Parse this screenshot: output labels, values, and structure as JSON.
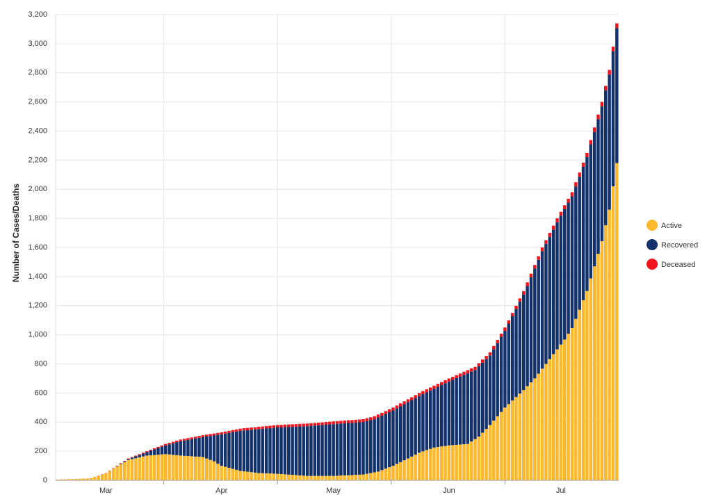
{
  "chart_data": {
    "type": "stacked-bar",
    "y_label": "Number of Cases/Deaths",
    "categories": [
      null,
      null,
      null,
      null,
      null,
      null,
      null,
      null,
      null,
      null,
      null,
      null,
      null,
      "Mar",
      null,
      null,
      null,
      null,
      null,
      null,
      null,
      null,
      null,
      null,
      null,
      null,
      null,
      null,
      null,
      null,
      null,
      null,
      null,
      null,
      null,
      null,
      null,
      null,
      null,
      null,
      null,
      null,
      null,
      null,
      "Apr",
      null,
      null,
      null,
      null,
      null,
      null,
      null,
      null,
      null,
      null,
      null,
      null,
      null,
      null,
      null,
      null,
      null,
      null,
      null,
      null,
      null,
      null,
      null,
      null,
      null,
      null,
      null,
      null,
      null,
      "May",
      null,
      null,
      null,
      null,
      null,
      null,
      null,
      null,
      null,
      null,
      null,
      null,
      null,
      null,
      null,
      null,
      null,
      null,
      null,
      null,
      null,
      null,
      null,
      null,
      null,
      null,
      null,
      null,
      null,
      null,
      "Jun",
      null,
      null,
      null,
      null,
      null,
      null,
      null,
      null,
      null,
      null,
      null,
      null,
      null,
      null,
      null,
      null,
      null,
      null,
      null,
      null,
      null,
      null,
      null,
      null,
      null,
      null,
      null,
      null,
      null,
      "Jul",
      null,
      null,
      null,
      null,
      null,
      null,
      null,
      null,
      null,
      null,
      null,
      null,
      null,
      null,
      null
    ],
    "series": [
      {
        "name": "Active",
        "color": "#fdb92b",
        "values": [
          5,
          6,
          7,
          8,
          9,
          10,
          11,
          12,
          13,
          15,
          23,
          31,
          39,
          48,
          64,
          80,
          95,
          110,
          125,
          140,
          146,
          152,
          158,
          164,
          170,
          172,
          174,
          176,
          178,
          180,
          178,
          175,
          173,
          170,
          168,
          167,
          165,
          163,
          162,
          160,
          150,
          140,
          130,
          115,
          100,
          93,
          86,
          79,
          72,
          65,
          62,
          59,
          56,
          53,
          50,
          49,
          48,
          47,
          46,
          45,
          43,
          41,
          39,
          38,
          36,
          34,
          32,
          30,
          30,
          30,
          30,
          30,
          30,
          30,
          30,
          31,
          33,
          34,
          35,
          36,
          38,
          39,
          40,
          45,
          50,
          55,
          60,
          70,
          80,
          90,
          100,
          113,
          125,
          138,
          150,
          163,
          177,
          190,
          199,
          208,
          216,
          225,
          229,
          233,
          236,
          240,
          242,
          244,
          246,
          248,
          250,
          267,
          283,
          300,
          327,
          353,
          380,
          410,
          440,
          470,
          500,
          524,
          548,
          572,
          596,
          620,
          647,
          673,
          700,
          733,
          767,
          800,
          833,
          867,
          900,
          933,
          967,
          1008,
          1046,
          1109,
          1172,
          1237,
          1301,
          1387,
          1470,
          1557,
          1643,
          1753,
          1860,
          2020,
          2180
        ]
      },
      {
        "name": "Recovered",
        "color": "#13316b",
        "values": [
          0,
          0,
          0,
          0,
          0,
          0,
          0,
          0,
          0,
          0,
          0,
          0,
          0,
          0,
          1,
          0,
          2,
          4,
          5,
          6,
          10,
          13,
          17,
          20,
          24,
          31,
          39,
          46,
          53,
          60,
          69,
          79,
          89,
          99,
          105,
          111,
          118,
          125,
          130,
          137,
          151,
          165,
          178,
          197,
          216,
          228,
          239,
          251,
          263,
          275,
          281,
          285,
          291,
          296,
          302,
          305,
          308,
          311,
          315,
          318,
          320,
          324,
          327,
          329,
          332,
          336,
          339,
          342,
          344,
          346,
          348,
          350,
          352,
          354,
          356,
          357,
          357,
          358,
          359,
          359,
          359,
          360,
          361,
          363,
          363,
          365,
          372,
          374,
          376,
          378,
          380,
          381,
          384,
          385,
          387,
          388,
          388,
          389,
          393,
          396,
          401,
          404,
          413,
          421,
          431,
          439,
          448,
          458,
          466,
          476,
          485,
          480,
          475,
          483,
          481,
          480,
          478,
          491,
          503,
          516,
          527,
          553,
          579,
          605,
          631,
          657,
          688,
          722,
          755,
          782,
          808,
          825,
          840,
          856,
          873,
          885,
          896,
          900,
          905,
          910,
          914,
          917,
          920,
          922,
          924,
          925,
          926,
          926,
          927,
          927,
          927
        ]
      },
      {
        "name": "Deceased",
        "color": "#f0141c",
        "values": [
          0,
          0,
          0,
          0,
          0,
          0,
          0,
          0,
          0,
          0,
          1,
          1,
          2,
          2,
          2,
          3,
          3,
          3,
          3,
          4,
          4,
          5,
          5,
          6,
          6,
          7,
          7,
          8,
          9,
          10,
          11,
          11,
          11,
          11,
          12,
          12,
          12,
          12,
          13,
          13,
          13,
          13,
          14,
          14,
          14,
          14,
          15,
          15,
          15,
          15,
          15,
          16,
          16,
          16,
          16,
          16,
          17,
          17,
          17,
          17,
          18,
          18,
          18,
          18,
          18,
          18,
          18,
          18,
          18,
          18,
          18,
          18,
          19,
          19,
          19,
          19,
          19,
          19,
          19,
          19,
          19,
          19,
          19,
          19,
          20,
          20,
          20,
          20,
          20,
          20,
          20,
          20,
          20,
          20,
          20,
          20,
          21,
          21,
          21,
          21,
          21,
          21,
          21,
          21,
          21,
          21,
          21,
          21,
          22,
          22,
          22,
          22,
          22,
          22,
          22,
          22,
          22,
          22,
          22,
          22,
          23,
          23,
          23,
          23,
          23,
          23,
          25,
          25,
          25,
          25,
          25,
          25,
          27,
          27,
          27,
          27,
          27,
          27,
          29,
          29,
          29,
          29,
          29,
          29,
          31,
          31,
          31,
          31,
          33,
          33,
          33
        ]
      }
    ],
    "ylim": [
      0,
      3200
    ],
    "yticks": [
      0,
      200,
      400,
      600,
      800,
      {
        "value": 1000,
        "label": "1,000"
      },
      {
        "value": 1200,
        "label": "1,200"
      },
      {
        "value": 1400,
        "label": "1,400"
      },
      {
        "value": 1600,
        "label": "1,600"
      },
      {
        "value": 1800,
        "label": "1,800"
      },
      {
        "value": 2000,
        "label": "2,000"
      },
      {
        "value": 2200,
        "label": "2,200"
      },
      {
        "value": 2400,
        "label": "2,400"
      },
      {
        "value": 2600,
        "label": "2,600"
      },
      {
        "value": 2800,
        "label": "2,800"
      },
      {
        "value": 3000,
        "label": "3,000"
      },
      {
        "value": 3200,
        "label": "3,200"
      }
    ],
    "grid": true,
    "legend": "right"
  }
}
